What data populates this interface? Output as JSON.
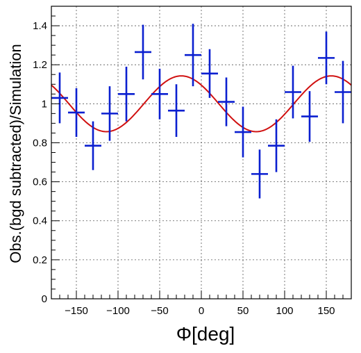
{
  "chart_data": {
    "type": "scatter",
    "title": "",
    "xlabel": "Φ[deg]",
    "ylabel": "Obs.(bgd subtracted)/Simulation",
    "xlim": [
      -180,
      180
    ],
    "ylim": [
      0,
      1.5
    ],
    "grid": true,
    "x_ticks": [
      -150,
      -100,
      -50,
      0,
      50,
      100,
      150
    ],
    "x_tick_labels": [
      "−150",
      "−100",
      "−50",
      "0",
      "50",
      "100",
      "150"
    ],
    "y_ticks": [
      0,
      0.2,
      0.4,
      0.6,
      0.8,
      1.0,
      1.2,
      1.4
    ],
    "y_tick_labels": [
      "0",
      "0.2",
      "0.4",
      "0.6",
      "0.8",
      "1",
      "1.2",
      "1.4"
    ],
    "colors": {
      "points": "#0a1fd0",
      "fit": "#d01010",
      "grid": "#555555"
    },
    "series": [
      {
        "kind": "points_with_errors",
        "x": [
          -170,
          -150,
          -130,
          -110,
          -90,
          -70,
          -50,
          -30,
          -10,
          10,
          30,
          50,
          70,
          90,
          110,
          130,
          150,
          170
        ],
        "x_err": 10,
        "y": [
          1.03,
          0.955,
          0.785,
          0.95,
          1.05,
          1.265,
          1.05,
          0.965,
          1.25,
          1.155,
          1.01,
          0.855,
          0.64,
          0.785,
          1.06,
          0.935,
          1.235,
          1.06
        ],
        "y_err": [
          0.13,
          0.125,
          0.125,
          0.14,
          0.14,
          0.14,
          0.13,
          0.135,
          0.16,
          0.125,
          0.125,
          0.13,
          0.125,
          0.135,
          0.135,
          0.13,
          0.135,
          0.16
        ]
      },
      {
        "kind": "fit_curve",
        "function": "1.0 + 0.143 * sin(2*(phi - 111 deg))"
      }
    ]
  }
}
